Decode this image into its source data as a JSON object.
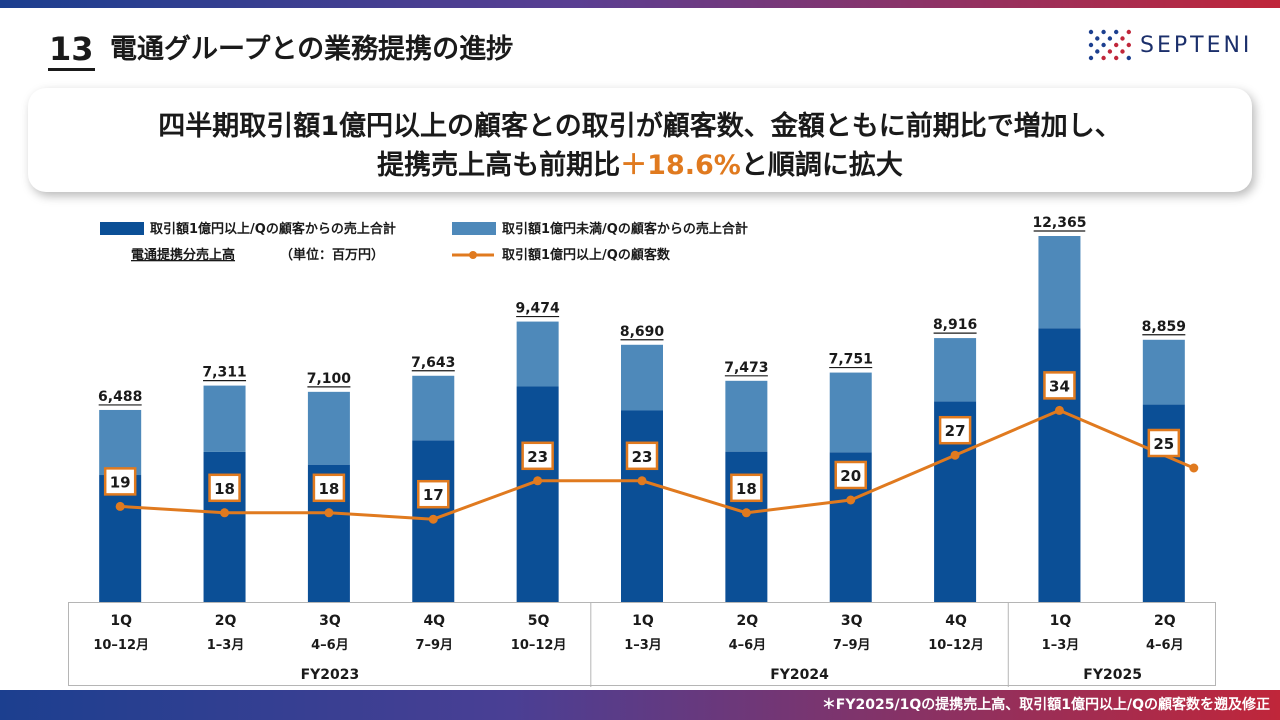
{
  "header": {
    "slide_number": "13",
    "title": "電通グループとの業務提携の進捗",
    "brand": "SEPTENI"
  },
  "headline": {
    "line1": "四半期取引額1億円以上の顧客との取引が顧客数、金額ともに前期比で増加し、",
    "line2_prefix": "提携売上高も前期比",
    "line2_accent": "＋18.6%",
    "line2_suffix": "と順調に拡大"
  },
  "colors": {
    "dark_bar": "#0b4f96",
    "light_bar": "#4e89ba",
    "line": "#e07a1f",
    "accent": "#e07a1f"
  },
  "chart_data": {
    "type": "bar",
    "stacked": true,
    "legend": {
      "dark": "取引額1億円以上/Qの顧客からの売上合計",
      "light": "取引額1億円未満/Qの顧客からの売上合計",
      "total": "電通提携分売上高",
      "unit": "（単位：百万円）",
      "line": "取引額1億円以上/Qの顧客数"
    },
    "categories": [
      {
        "q": "1Q",
        "months": "10–12月"
      },
      {
        "q": "2Q",
        "months": "1–3月"
      },
      {
        "q": "3Q",
        "months": "4–6月"
      },
      {
        "q": "4Q",
        "months": "7–9月"
      },
      {
        "q": "5Q",
        "months": "10–12月"
      },
      {
        "q": "1Q",
        "months": "1–3月"
      },
      {
        "q": "2Q",
        "months": "4–6月"
      },
      {
        "q": "3Q",
        "months": "7–9月"
      },
      {
        "q": "4Q",
        "months": "10–12月"
      },
      {
        "q": "1Q",
        "months": "1–3月"
      },
      {
        "q": "2Q",
        "months": "4–6月"
      }
    ],
    "fiscal_years": [
      {
        "label": "FY2023",
        "span": 5
      },
      {
        "label": "FY2024",
        "span": 4
      },
      {
        "label": "FY2025",
        "span": 2
      }
    ],
    "total_labels": [
      "6,488",
      "7,311",
      "7,100",
      "7,643",
      "9,474",
      "8,690",
      "7,473",
      "7,751",
      "8,916",
      "12,365",
      "8,859"
    ],
    "series": [
      {
        "name": "取引額1億円以上/Qの顧客からの売上合計",
        "values": [
          4290,
          5070,
          4640,
          5460,
          7280,
          6470,
          5080,
          5060,
          6780,
          9250,
          6670
        ]
      },
      {
        "name": "取引額1億円未満/Qの顧客からの売上合計",
        "values": [
          2198,
          2241,
          2460,
          2183,
          2194,
          2220,
          2393,
          2691,
          2136,
          3115,
          2189
        ]
      }
    ],
    "totals": [
      6488,
      7311,
      7100,
      7643,
      9474,
      8690,
      7473,
      7751,
      8916,
      12365,
      8859
    ],
    "customer_counts": [
      19,
      18,
      18,
      17,
      23,
      23,
      18,
      20,
      27,
      34,
      25
    ],
    "ylim": [
      0,
      12365
    ]
  },
  "footnote": "＊FY2025/1Qの提携売上高、取引額1億円以上/Qの顧客数を遡及修正"
}
